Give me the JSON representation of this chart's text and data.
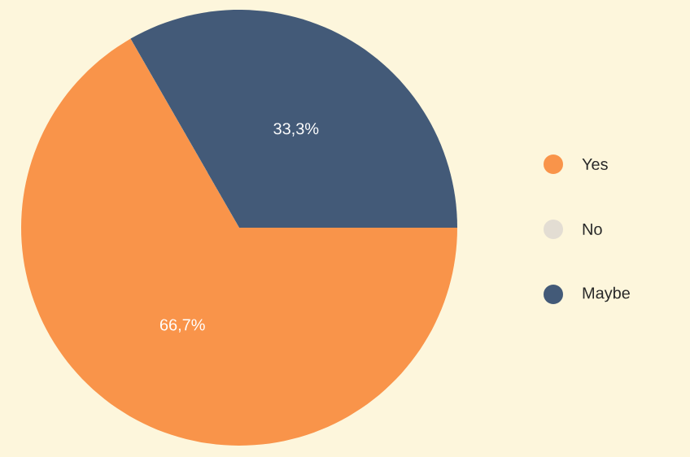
{
  "chart_data": {
    "type": "pie",
    "categories": [
      "Yes",
      "No",
      "Maybe"
    ],
    "values": [
      66.7,
      0,
      33.3
    ],
    "colors": [
      "#f9944a",
      "#e3ddd3",
      "#435a78"
    ],
    "value_labels": [
      "66,7%",
      null,
      "33,3%"
    ],
    "legend": "right"
  }
}
